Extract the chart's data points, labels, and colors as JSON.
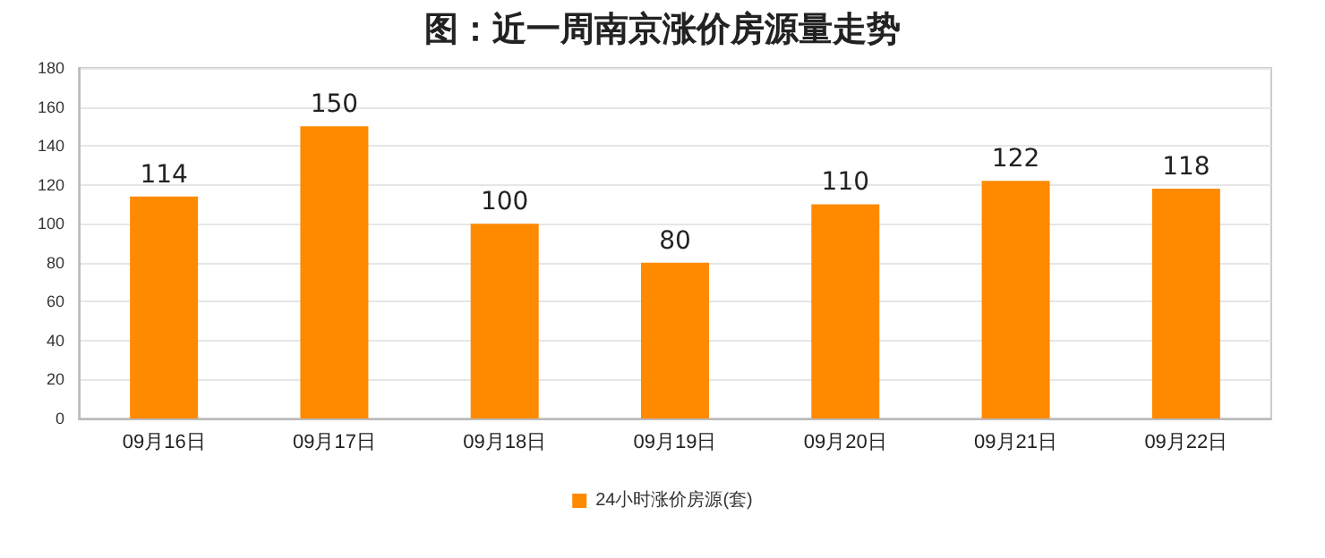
{
  "chart_data": {
    "type": "bar",
    "title": "图：近一周南京涨价房源量走势",
    "categories": [
      "09月16日",
      "09月17日",
      "09月18日",
      "09月19日",
      "09月20日",
      "09月21日",
      "09月22日"
    ],
    "series": [
      {
        "name": "24小时涨价房源(套)",
        "color": "#ff8a00",
        "values": [
          114,
          150,
          100,
          80,
          110,
          122,
          118
        ]
      }
    ],
    "ylim": [
      0,
      180
    ],
    "yticks": [
      0,
      20,
      40,
      60,
      80,
      100,
      120,
      140,
      160,
      180
    ],
    "grid": "y",
    "legend": "bottom",
    "data_labels": true
  }
}
